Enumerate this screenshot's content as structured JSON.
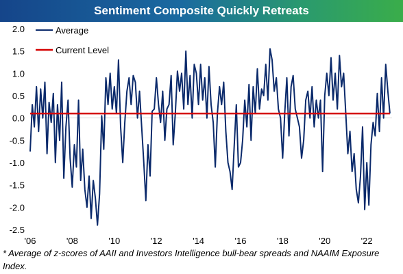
{
  "title": "Sentiment Composite Quickly Retreats",
  "footnote": "* Average of z-scores of AAII and Investors Intelligence bull-bear spreads and NAAIM Exposure Index.",
  "colors": {
    "average": "#0b2a6b",
    "current": "#d40000",
    "grid": "#dddddd"
  },
  "chart_data": {
    "type": "line",
    "title": "Sentiment Composite Quickly Retreats",
    "xlabel": "",
    "ylabel": "",
    "xlim": [
      2006,
      2023.2
    ],
    "ylim": [
      -2.5,
      2.0
    ],
    "yticks": [
      "2.0",
      "1.5",
      "1.0",
      "0.5",
      "0.0",
      "-0.5",
      "-1.0",
      "-1.5",
      "-2.0",
      "-2.5"
    ],
    "xticks": [
      "'06",
      "'08",
      "'10",
      "'12",
      "'14",
      "'16",
      "'18",
      "'20",
      "'22"
    ],
    "legend": {
      "position": "top-left",
      "entries": [
        "Average",
        "Current Level"
      ]
    },
    "series": [
      {
        "name": "Average",
        "x": [
          2006.0,
          2006.1,
          2006.2,
          2006.3,
          2006.4,
          2006.5,
          2006.6,
          2006.7,
          2006.8,
          2006.9,
          2007.0,
          2007.1,
          2007.2,
          2007.3,
          2007.4,
          2007.5,
          2007.6,
          2007.7,
          2007.8,
          2007.9,
          2008.0,
          2008.1,
          2008.2,
          2008.3,
          2008.4,
          2008.5,
          2008.6,
          2008.7,
          2008.8,
          2008.9,
          2009.0,
          2009.1,
          2009.2,
          2009.3,
          2009.4,
          2009.5,
          2009.6,
          2009.7,
          2009.8,
          2009.9,
          2010.0,
          2010.1,
          2010.2,
          2010.3,
          2010.4,
          2010.5,
          2010.6,
          2010.7,
          2010.8,
          2010.9,
          2011.0,
          2011.1,
          2011.2,
          2011.3,
          2011.4,
          2011.5,
          2011.6,
          2011.7,
          2011.8,
          2011.9,
          2012.0,
          2012.1,
          2012.2,
          2012.3,
          2012.4,
          2012.5,
          2012.6,
          2012.7,
          2012.8,
          2012.9,
          2013.0,
          2013.1,
          2013.2,
          2013.3,
          2013.4,
          2013.5,
          2013.6,
          2013.7,
          2013.8,
          2013.9,
          2014.0,
          2014.1,
          2014.2,
          2014.3,
          2014.4,
          2014.5,
          2014.6,
          2014.7,
          2014.8,
          2014.9,
          2015.0,
          2015.1,
          2015.2,
          2015.3,
          2015.4,
          2015.5,
          2015.6,
          2015.7,
          2015.8,
          2015.9,
          2016.0,
          2016.1,
          2016.2,
          2016.3,
          2016.4,
          2016.5,
          2016.6,
          2016.7,
          2016.8,
          2016.9,
          2017.0,
          2017.1,
          2017.2,
          2017.3,
          2017.4,
          2017.5,
          2017.6,
          2017.7,
          2017.8,
          2017.9,
          2018.0,
          2018.1,
          2018.2,
          2018.3,
          2018.4,
          2018.5,
          2018.6,
          2018.7,
          2018.8,
          2018.9,
          2019.0,
          2019.1,
          2019.2,
          2019.3,
          2019.4,
          2019.5,
          2019.6,
          2019.7,
          2019.8,
          2019.9,
          2020.0,
          2020.1,
          2020.2,
          2020.3,
          2020.4,
          2020.5,
          2020.6,
          2020.7,
          2020.8,
          2020.9,
          2021.0,
          2021.1,
          2021.2,
          2021.3,
          2021.4,
          2021.5,
          2021.6,
          2021.7,
          2021.8,
          2021.9,
          2022.0,
          2022.1,
          2022.2,
          2022.3,
          2022.4,
          2022.5,
          2022.6,
          2022.7,
          2022.8,
          2022.9,
          2023.0,
          2023.1
        ],
        "values": [
          -0.75,
          0.3,
          -0.2,
          0.7,
          -0.3,
          0.65,
          0.0,
          0.8,
          -0.8,
          0.35,
          -0.1,
          0.55,
          -1.0,
          0.3,
          -0.5,
          0.8,
          -1.35,
          -0.2,
          0.4,
          -0.9,
          -1.55,
          -0.6,
          -1.1,
          0.4,
          -1.4,
          -0.7,
          -1.6,
          -2.0,
          -1.3,
          -2.25,
          -1.4,
          -1.8,
          -2.4,
          -1.7,
          0.05,
          -0.7,
          0.9,
          0.3,
          1.0,
          0.2,
          0.7,
          0.1,
          1.3,
          -0.2,
          -1.0,
          -0.1,
          0.6,
          0.9,
          0.3,
          0.95,
          0.8,
          0.0,
          0.6,
          -0.2,
          -1.0,
          -1.85,
          -0.6,
          -1.3,
          0.15,
          0.2,
          0.9,
          0.3,
          -0.1,
          0.6,
          -0.5,
          0.2,
          0.3,
          0.95,
          -0.6,
          0.1,
          1.05,
          0.6,
          1.0,
          0.2,
          1.5,
          0.3,
          0.95,
          0.0,
          1.2,
          1.0,
          0.3,
          1.2,
          0.4,
          0.9,
          0.0,
          1.15,
          0.3,
          -0.1,
          -1.1,
          0.1,
          0.7,
          0.3,
          0.8,
          -0.3,
          -1.0,
          -1.2,
          -1.6,
          -0.6,
          0.3,
          -1.1,
          -1.0,
          -0.5,
          0.4,
          -0.2,
          0.75,
          -0.5,
          0.7,
          0.1,
          1.1,
          0.2,
          0.65,
          0.5,
          1.2,
          0.4,
          1.55,
          1.3,
          0.6,
          0.9,
          0.2,
          0.0,
          -0.9,
          0.1,
          0.9,
          -0.4,
          0.7,
          0.95,
          0.2,
          0.0,
          -0.2,
          -0.9,
          -0.5,
          0.4,
          0.6,
          0.0,
          0.7,
          -0.2,
          0.4,
          0.0,
          0.4,
          -1.2,
          0.5,
          1.0,
          0.5,
          1.35,
          0.4,
          1.0,
          0.2,
          1.4,
          0.7,
          1.0,
          0.1,
          -0.8,
          -0.3,
          -1.2,
          -0.8,
          -1.6,
          -1.9,
          -1.3,
          -0.2,
          -2.05,
          -1.0,
          -1.95,
          -0.6,
          -0.1,
          -0.4,
          0.55,
          -0.3,
          0.9,
          0.0,
          1.2,
          0.6,
          0.1
        ]
      },
      {
        "name": "Current Level",
        "x": [
          2006.0,
          2023.1
        ],
        "values": [
          0.1,
          0.1
        ]
      }
    ]
  }
}
